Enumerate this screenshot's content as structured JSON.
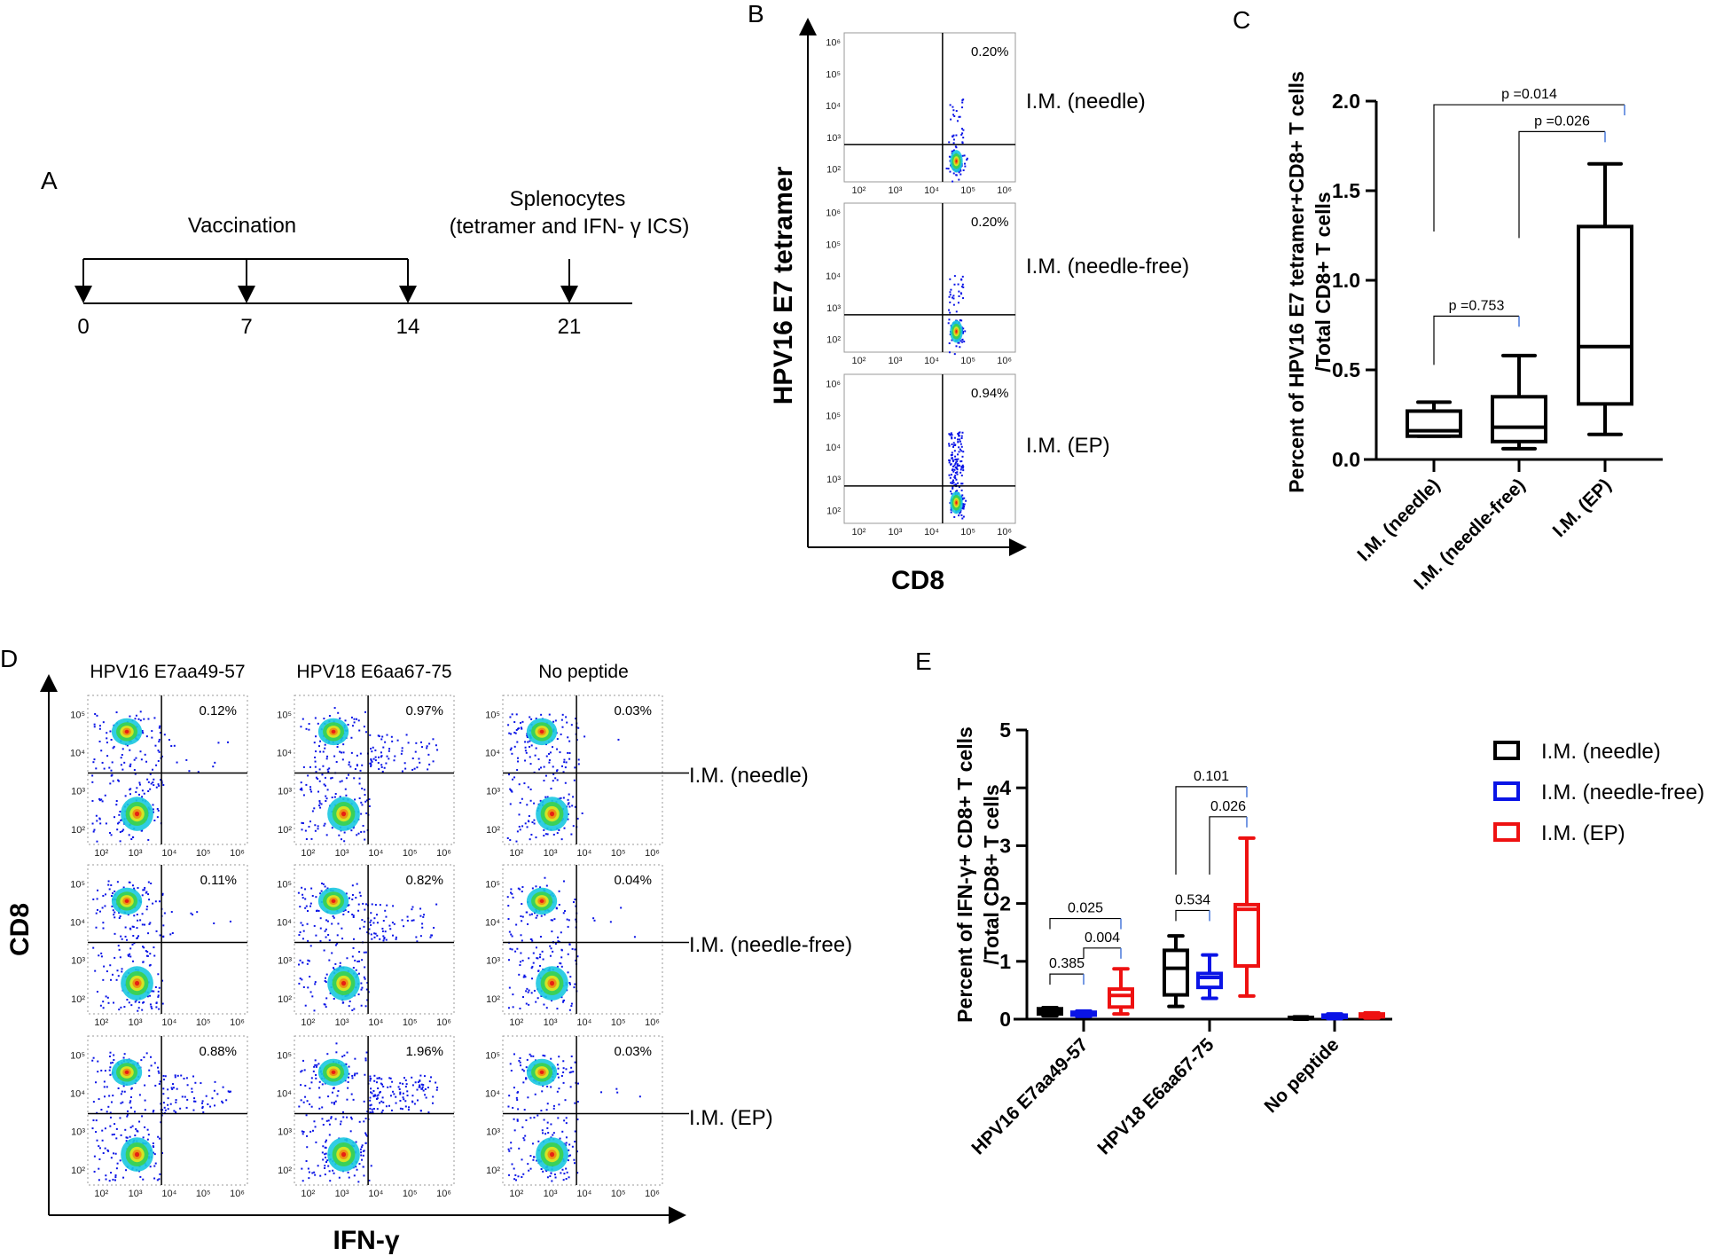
{
  "panel_a": {
    "letter": "A",
    "vaccination_label": "Vaccination",
    "harvest_label_line1": "Splenocytes",
    "harvest_label_line2": "(tetramer and IFN- γ ICS)",
    "days": [
      "0",
      "7",
      "14",
      "21"
    ]
  },
  "panel_b": {
    "letter": "B",
    "y_axis_title": "HPV16 E7 tetramer",
    "x_axis_title": "CD8",
    "log_ticks": [
      "10²",
      "10³",
      "10⁴",
      "10⁵",
      "10⁶"
    ],
    "plots": [
      {
        "group": "I.M. (needle)",
        "percent": "0.20%"
      },
      {
        "group": "I.M. (needle-free)",
        "percent": "0.20%"
      },
      {
        "group": "I.M. (EP)",
        "percent": "0.94%"
      }
    ]
  },
  "panel_c": {
    "letter": "C"
  },
  "panel_d": {
    "letter": "D",
    "y_axis_title": "CD8",
    "x_axis_title": "IFN-γ",
    "columns": [
      "HPV16 E7aa49-57",
      "HPV18 E6aa67-75",
      "No peptide"
    ],
    "rows": [
      "I.M. (needle)",
      "I.M. (needle-free)",
      "I.M. (EP)"
    ],
    "x_log_ticks": [
      "10²",
      "10³",
      "10⁴",
      "10⁵",
      "10⁶"
    ],
    "y_log_ticks": [
      "10²",
      "10³",
      "10⁴",
      "10⁵"
    ],
    "percents": [
      [
        "0.12%",
        "0.97%",
        "0.03%"
      ],
      [
        "0.11%",
        "0.82%",
        "0.04%"
      ],
      [
        "0.88%",
        "1.96%",
        "0.03%"
      ]
    ]
  },
  "panel_e": {
    "letter": "E"
  },
  "chart_data": [
    {
      "type": "box",
      "panel": "C",
      "ylabel_line1": "Percent of HPV16 E7 tetramer+CD8+ T cells",
      "ylabel_line2": "/Total CD8+ T cells",
      "ylim": [
        0,
        2.0
      ],
      "yticks": [
        "0.0",
        "0.5",
        "1.0",
        "1.5",
        "2.0"
      ],
      "categories": [
        "I.M. (needle)",
        "I.M. (needle-free)",
        "I.M. (EP)"
      ],
      "boxes": [
        {
          "min": 0.13,
          "q1": 0.13,
          "median": 0.16,
          "q3": 0.27,
          "max": 0.32
        },
        {
          "min": 0.06,
          "q1": 0.1,
          "median": 0.18,
          "q3": 0.35,
          "max": 0.58
        },
        {
          "min": 0.14,
          "q1": 0.31,
          "median": 0.63,
          "q3": 1.3,
          "max": 1.65
        }
      ],
      "comparisons": [
        {
          "from": 0,
          "to": 1,
          "y": 0.8,
          "label": "p =0.753"
        },
        {
          "from": 1,
          "to": 2,
          "y": 1.83,
          "label": "p =0.026"
        },
        {
          "from": 0,
          "to": 2,
          "y": 1.98,
          "label": "p =0.014"
        }
      ],
      "colors": {
        "box": "#000000",
        "bracket_tip": "#3a6fd8"
      }
    },
    {
      "type": "box",
      "panel": "E",
      "ylabel_line1": "Percent of IFN-γ+ CD8+ T cells",
      "ylabel_line2": "/Total CD8+ T cells",
      "ylim": [
        0,
        5
      ],
      "yticks": [
        "0",
        "1",
        "2",
        "3",
        "4",
        "5"
      ],
      "categories": [
        "HPV16 E7aa49-57",
        "HPV18 E6aa67-75",
        "No peptide"
      ],
      "legend_position": "right",
      "series": [
        {
          "name": "I.M. (needle)",
          "color": "#000000",
          "boxes": [
            {
              "min": 0.06,
              "q1": 0.09,
              "median": 0.13,
              "q3": 0.18,
              "max": 0.2
            },
            {
              "min": 0.22,
              "q1": 0.42,
              "median": 0.88,
              "q3": 1.19,
              "max": 1.44
            },
            {
              "min": 0.0,
              "q1": 0.01,
              "median": 0.02,
              "q3": 0.03,
              "max": 0.04
            }
          ]
        },
        {
          "name": "I.M. (needle-free)",
          "color": "#0a14e6",
          "boxes": [
            {
              "min": 0.05,
              "q1": 0.07,
              "median": 0.09,
              "q3": 0.12,
              "max": 0.14
            },
            {
              "min": 0.36,
              "q1": 0.55,
              "median": 0.72,
              "q3": 0.79,
              "max": 1.11
            },
            {
              "min": 0.01,
              "q1": 0.03,
              "median": 0.05,
              "q3": 0.07,
              "max": 0.09
            }
          ]
        },
        {
          "name": "I.M. (EP)",
          "color": "#ee1111",
          "boxes": [
            {
              "min": 0.09,
              "q1": 0.21,
              "median": 0.41,
              "q3": 0.52,
              "max": 0.87
            },
            {
              "min": 0.4,
              "q1": 0.92,
              "median": 1.9,
              "q3": 1.98,
              "max": 3.13
            },
            {
              "min": 0.02,
              "q1": 0.04,
              "median": 0.07,
              "q3": 0.09,
              "max": 0.11
            }
          ]
        }
      ],
      "comparisons": [
        {
          "group": 0,
          "from": 0,
          "to": 1,
          "y": 0.78,
          "label": "0.385"
        },
        {
          "group": 0,
          "from": 1,
          "to": 2,
          "y": 1.23,
          "label": "0.004"
        },
        {
          "group": 0,
          "from": 0,
          "to": 2,
          "y": 1.74,
          "label": "0.025"
        },
        {
          "group": 1,
          "from": 0,
          "to": 1,
          "y": 1.88,
          "label": "0.534"
        },
        {
          "group": 1,
          "from": 1,
          "to": 2,
          "y": 3.5,
          "label": "0.026"
        },
        {
          "group": 1,
          "from": 0,
          "to": 2,
          "y": 4.02,
          "label": "0.101"
        }
      ]
    }
  ]
}
